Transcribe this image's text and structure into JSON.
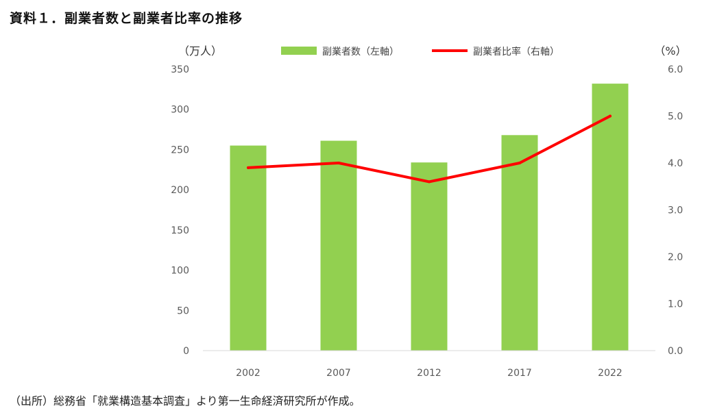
{
  "page_title": "資料１．副業者数と副業者比率の推移",
  "source_note": "（出所）総務省「就業構造基本調査」より第一生命経済研究所が作成。",
  "colors": {
    "bar": "#92D050",
    "line": "#FF0000",
    "axis_text": "#595959"
  },
  "chart_data": {
    "type": "bar",
    "title": "",
    "categories": [
      "2002",
      "2007",
      "2012",
      "2017",
      "2022"
    ],
    "series": [
      {
        "name": "副業者数（左軸）",
        "type": "bar",
        "axis": "left",
        "values": [
          255,
          261,
          234,
          268,
          332
        ]
      },
      {
        "name": "副業者比率（右軸）",
        "type": "line",
        "axis": "right",
        "values": [
          3.9,
          4.0,
          3.6,
          4.0,
          5.0
        ]
      }
    ],
    "y_left": {
      "label": "（万人）",
      "range": [
        0,
        350
      ],
      "ticks": [
        "0",
        "50",
        "100",
        "150",
        "200",
        "250",
        "300",
        "350"
      ]
    },
    "y_right": {
      "label": "（%）",
      "range": [
        0,
        6
      ],
      "ticks": [
        "0.0",
        "1.0",
        "2.0",
        "3.0",
        "4.0",
        "5.0",
        "6.0"
      ]
    },
    "grid": false,
    "legend_position": "top"
  }
}
